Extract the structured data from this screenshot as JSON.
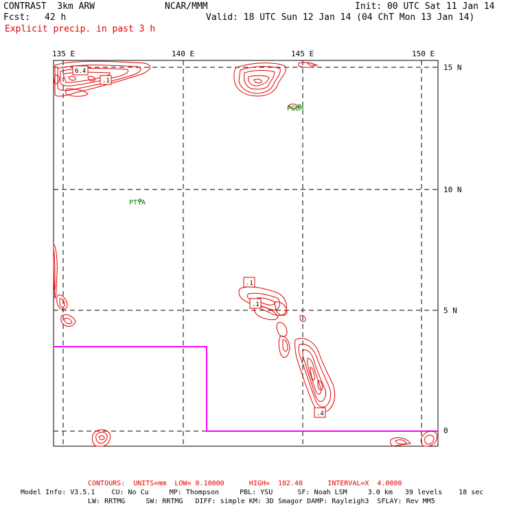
{
  "header": {
    "model": "CONTRAST  3km ARW",
    "org": "NCAR/MMM",
    "init": "Init: 00 UTC Sat 11 Jan 14",
    "fcst_label": "Fcst:",
    "fcst_value": "42 h",
    "valid": "Valid: 18 UTC Sun 12 Jan 14 (04 ChT Mon 13 Jan 14)",
    "field": "Explicit precip. in past 3 h"
  },
  "axes": {
    "lon_labels": [
      "135 E",
      "140 E",
      "145 E",
      "150 E"
    ],
    "lat_labels": [
      "15 N",
      "10 N",
      "5 N",
      "0"
    ]
  },
  "stations": [
    {
      "name": "PGUM"
    },
    {
      "name": "PTYA"
    }
  ],
  "contour_labels": [
    "6.4",
    ".1",
    ".1",
    ".1",
    ".4"
  ],
  "colors": {
    "contour": "#e00000",
    "boundary": "#ff00ff",
    "station": "#008000",
    "grid": "#000000"
  },
  "footer": {
    "contours": "CONTOURS:  UNITS=mm  LOW= 0.10000      HIGH=  102.40      INTERVAL=X  4.0000",
    "model_info_1": "Model Info: V3.5.1    CU: No Cu     MP: Thompson     PBL: YSU      SF: Noah LSM     3.0 km   39 levels    18 sec",
    "model_info_2": "LW: RRTMG     SW: RRTMG   DIFF: simple KM: 3D Smagor DAMP: Rayleigh3  SFLAY: Rev MM5"
  }
}
